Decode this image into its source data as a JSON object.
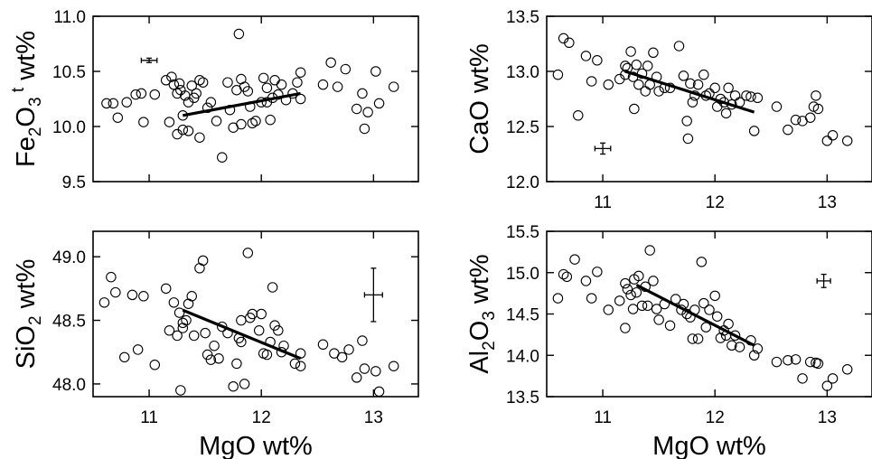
{
  "chart_data": [
    {
      "type": "scatter",
      "xlabel": "",
      "ylabel": {
        "pre": "Fe",
        "sub": "2",
        "mid": "O",
        "sub2": "3",
        "sup": "t",
        "post": " wt%"
      },
      "xlim": [
        10.5,
        13.4
      ],
      "ylim": [
        9.5,
        11.0
      ],
      "xticks": [
        11,
        12,
        13
      ],
      "xtick_labels": [
        "",
        "",
        ""
      ],
      "yticks": [
        9.5,
        10.0,
        10.5,
        11.0
      ],
      "ytick_labels": [
        "9.5",
        "10.0",
        "10.5",
        "11.0"
      ],
      "grid": false,
      "points": [
        [
          10.62,
          10.21
        ],
        [
          10.68,
          10.21
        ],
        [
          10.72,
          10.08
        ],
        [
          10.8,
          10.22
        ],
        [
          10.88,
          10.29
        ],
        [
          10.93,
          10.3
        ],
        [
          10.95,
          10.04
        ],
        [
          11.05,
          10.29
        ],
        [
          11.15,
          10.42
        ],
        [
          11.18,
          10.04
        ],
        [
          11.2,
          10.45
        ],
        [
          11.22,
          10.38
        ],
        [
          11.25,
          10.3
        ],
        [
          11.25,
          9.93
        ],
        [
          11.27,
          10.39
        ],
        [
          11.28,
          10.33
        ],
        [
          11.3,
          10.1
        ],
        [
          11.3,
          9.97
        ],
        [
          11.32,
          10.28
        ],
        [
          11.35,
          10.22
        ],
        [
          11.35,
          9.96
        ],
        [
          11.38,
          10.37
        ],
        [
          11.4,
          10.26
        ],
        [
          11.42,
          10.3
        ],
        [
          11.45,
          10.42
        ],
        [
          11.45,
          9.9
        ],
        [
          11.48,
          10.4
        ],
        [
          11.52,
          10.17
        ],
        [
          11.55,
          10.22
        ],
        [
          11.6,
          10.05
        ],
        [
          11.65,
          9.72
        ],
        [
          11.7,
          10.4
        ],
        [
          11.72,
          10.15
        ],
        [
          11.75,
          9.99
        ],
        [
          11.78,
          10.33
        ],
        [
          11.8,
          10.84
        ],
        [
          11.82,
          10.43
        ],
        [
          11.82,
          10.02
        ],
        [
          11.85,
          10.36
        ],
        [
          11.88,
          10.32
        ],
        [
          11.9,
          10.18
        ],
        [
          11.92,
          10.03
        ],
        [
          11.95,
          10.05
        ],
        [
          12.0,
          10.22
        ],
        [
          12.02,
          10.44
        ],
        [
          12.05,
          10.35
        ],
        [
          12.05,
          10.22
        ],
        [
          12.08,
          10.06
        ],
        [
          12.1,
          10.26
        ],
        [
          12.12,
          10.42
        ],
        [
          12.15,
          10.29
        ],
        [
          12.18,
          10.38
        ],
        [
          12.22,
          10.24
        ],
        [
          12.28,
          10.3
        ],
        [
          12.32,
          10.4
        ],
        [
          12.35,
          10.49
        ],
        [
          12.35,
          10.25
        ],
        [
          12.55,
          10.38
        ],
        [
          12.62,
          10.58
        ],
        [
          12.68,
          10.36
        ],
        [
          12.75,
          10.52
        ],
        [
          12.85,
          10.16
        ],
        [
          12.9,
          10.3
        ],
        [
          12.92,
          9.98
        ],
        [
          12.95,
          10.13
        ],
        [
          13.02,
          10.5
        ],
        [
          13.05,
          10.21
        ],
        [
          13.18,
          10.36
        ]
      ],
      "trendline": [
        [
          11.3,
          10.1
        ],
        [
          12.35,
          10.3
        ]
      ],
      "error_bar": {
        "x": 11.0,
        "y": 10.6,
        "dx": 0.07,
        "dy": 0.02
      }
    },
    {
      "type": "scatter",
      "xlabel": "",
      "ylabel": {
        "pre": "CaO wt%"
      },
      "xlim": [
        10.5,
        13.4
      ],
      "ylim": [
        12.0,
        13.5
      ],
      "xticks": [
        11,
        12,
        13
      ],
      "xtick_labels": [
        "11",
        "12",
        "13"
      ],
      "yticks": [
        12.0,
        12.5,
        13.0,
        13.5
      ],
      "ytick_labels": [
        "12.0",
        "12.5",
        "13.0",
        "13.5"
      ],
      "grid": false,
      "points": [
        [
          10.6,
          12.97
        ],
        [
          10.65,
          13.3
        ],
        [
          10.7,
          13.26
        ],
        [
          10.78,
          12.6
        ],
        [
          10.85,
          13.14
        ],
        [
          10.9,
          12.91
        ],
        [
          10.95,
          13.1
        ],
        [
          11.05,
          12.88
        ],
        [
          11.15,
          12.93
        ],
        [
          11.2,
          13.05
        ],
        [
          11.2,
          12.97
        ],
        [
          11.22,
          13.03
        ],
        [
          11.25,
          13.18
        ],
        [
          11.27,
          12.95
        ],
        [
          11.28,
          12.66
        ],
        [
          11.3,
          13.06
        ],
        [
          11.32,
          12.88
        ],
        [
          11.35,
          12.98
        ],
        [
          11.38,
          12.82
        ],
        [
          11.4,
          13.05
        ],
        [
          11.42,
          12.88
        ],
        [
          11.45,
          13.17
        ],
        [
          11.48,
          12.95
        ],
        [
          11.5,
          12.82
        ],
        [
          11.55,
          12.85
        ],
        [
          11.6,
          12.85
        ],
        [
          11.68,
          13.23
        ],
        [
          11.72,
          12.96
        ],
        [
          11.75,
          12.55
        ],
        [
          11.76,
          12.39
        ],
        [
          11.78,
          12.89
        ],
        [
          11.8,
          12.72
        ],
        [
          11.82,
          12.78
        ],
        [
          11.85,
          12.88
        ],
        [
          11.9,
          12.97
        ],
        [
          11.92,
          12.78
        ],
        [
          11.95,
          12.8
        ],
        [
          12.0,
          12.85
        ],
        [
          12.02,
          12.68
        ],
        [
          12.05,
          12.75
        ],
        [
          12.08,
          12.72
        ],
        [
          12.1,
          12.62
        ],
        [
          12.12,
          12.85
        ],
        [
          12.15,
          12.7
        ],
        [
          12.18,
          12.78
        ],
        [
          12.22,
          12.72
        ],
        [
          12.28,
          12.78
        ],
        [
          12.32,
          12.77
        ],
        [
          12.35,
          12.46
        ],
        [
          12.38,
          12.76
        ],
        [
          12.55,
          12.68
        ],
        [
          12.65,
          12.47
        ],
        [
          12.72,
          12.56
        ],
        [
          12.78,
          12.55
        ],
        [
          12.85,
          12.58
        ],
        [
          12.88,
          12.68
        ],
        [
          12.9,
          12.78
        ],
        [
          12.92,
          12.66
        ],
        [
          13.0,
          12.37
        ],
        [
          13.05,
          12.42
        ],
        [
          13.18,
          12.37
        ]
      ],
      "trendline": [
        [
          11.2,
          13.0
        ],
        [
          12.35,
          12.63
        ]
      ],
      "error_bar": {
        "x": 11.0,
        "y": 12.3,
        "dx": 0.07,
        "dy": 0.05
      }
    },
    {
      "type": "scatter",
      "xlabel": "MgO wt%",
      "ylabel": {
        "pre": "SiO",
        "sub": "2",
        "post": " wt%"
      },
      "xlim": [
        10.5,
        13.4
      ],
      "ylim": [
        47.9,
        49.2
      ],
      "xticks": [
        11,
        12,
        13
      ],
      "xtick_labels": [
        "11",
        "12",
        "13"
      ],
      "yticks": [
        48.0,
        48.5,
        49.0
      ],
      "ytick_labels": [
        "48.0",
        "48.5",
        "49.0"
      ],
      "grid": false,
      "points": [
        [
          10.6,
          48.64
        ],
        [
          10.66,
          48.84
        ],
        [
          10.7,
          48.72
        ],
        [
          10.78,
          48.21
        ],
        [
          10.85,
          48.7
        ],
        [
          10.9,
          48.27
        ],
        [
          10.95,
          48.69
        ],
        [
          11.05,
          48.15
        ],
        [
          11.15,
          48.75
        ],
        [
          11.18,
          48.42
        ],
        [
          11.22,
          48.64
        ],
        [
          11.25,
          48.38
        ],
        [
          11.27,
          48.56
        ],
        [
          11.28,
          47.95
        ],
        [
          11.3,
          48.48
        ],
        [
          11.3,
          48.44
        ],
        [
          11.33,
          48.5
        ],
        [
          11.35,
          48.63
        ],
        [
          11.38,
          48.69
        ],
        [
          11.4,
          48.38
        ],
        [
          11.45,
          48.91
        ],
        [
          11.48,
          48.97
        ],
        [
          11.5,
          48.4
        ],
        [
          11.52,
          48.23
        ],
        [
          11.55,
          48.19
        ],
        [
          11.58,
          48.3
        ],
        [
          11.62,
          48.2
        ],
        [
          11.65,
          48.45
        ],
        [
          11.7,
          48.4
        ],
        [
          11.75,
          47.98
        ],
        [
          11.78,
          48.16
        ],
        [
          11.8,
          48.36
        ],
        [
          11.82,
          48.33
        ],
        [
          11.82,
          48.5
        ],
        [
          11.85,
          48.0
        ],
        [
          11.88,
          49.03
        ],
        [
          11.9,
          48.52
        ],
        [
          11.92,
          48.55
        ],
        [
          11.98,
          48.42
        ],
        [
          12.0,
          48.55
        ],
        [
          12.02,
          48.24
        ],
        [
          12.05,
          48.23
        ],
        [
          12.08,
          48.33
        ],
        [
          12.1,
          48.76
        ],
        [
          12.12,
          48.46
        ],
        [
          12.15,
          48.42
        ],
        [
          12.18,
          48.25
        ],
        [
          12.2,
          48.3
        ],
        [
          12.3,
          48.16
        ],
        [
          12.35,
          48.24
        ],
        [
          12.35,
          48.14
        ],
        [
          12.55,
          48.31
        ],
        [
          12.65,
          48.24
        ],
        [
          12.72,
          48.21
        ],
        [
          12.78,
          48.27
        ],
        [
          12.85,
          48.05
        ],
        [
          12.9,
          48.34
        ],
        [
          12.92,
          48.12
        ],
        [
          13.02,
          48.1
        ],
        [
          13.05,
          47.94
        ],
        [
          13.18,
          48.14
        ]
      ],
      "trendline": [
        [
          11.3,
          48.58
        ],
        [
          12.35,
          48.2
        ]
      ],
      "error_bar": {
        "x": 13.0,
        "y": 48.7,
        "dx": 0.08,
        "dy": 0.21
      }
    },
    {
      "type": "scatter",
      "xlabel": "MgO wt%",
      "ylabel": {
        "pre": "Al",
        "sub": "2",
        "mid": "O",
        "sub2": "3",
        "post": " wt%"
      },
      "xlim": [
        10.5,
        13.4
      ],
      "ylim": [
        13.5,
        15.5
      ],
      "xticks": [
        11,
        12,
        13
      ],
      "xtick_labels": [
        "11",
        "12",
        "13"
      ],
      "yticks": [
        13.5,
        14.0,
        14.5,
        15.0,
        15.5
      ],
      "ytick_labels": [
        "13.5",
        "14.0",
        "14.5",
        "15.0",
        "15.5"
      ],
      "grid": false,
      "points": [
        [
          10.6,
          14.69
        ],
        [
          10.65,
          14.98
        ],
        [
          10.68,
          14.95
        ],
        [
          10.75,
          15.16
        ],
        [
          10.85,
          14.9
        ],
        [
          10.9,
          14.69
        ],
        [
          10.95,
          15.01
        ],
        [
          11.05,
          14.55
        ],
        [
          11.15,
          14.66
        ],
        [
          11.2,
          14.87
        ],
        [
          11.2,
          14.33
        ],
        [
          11.22,
          14.8
        ],
        [
          11.25,
          14.73
        ],
        [
          11.27,
          14.56
        ],
        [
          11.28,
          14.92
        ],
        [
          11.3,
          14.76
        ],
        [
          11.32,
          14.96
        ],
        [
          11.35,
          14.6
        ],
        [
          11.38,
          14.83
        ],
        [
          11.4,
          14.6
        ],
        [
          11.42,
          15.27
        ],
        [
          11.45,
          14.9
        ],
        [
          11.48,
          14.56
        ],
        [
          11.5,
          14.43
        ],
        [
          11.55,
          14.62
        ],
        [
          11.6,
          14.36
        ],
        [
          11.65,
          14.68
        ],
        [
          11.7,
          14.55
        ],
        [
          11.72,
          14.62
        ],
        [
          11.75,
          14.5
        ],
        [
          11.78,
          14.46
        ],
        [
          11.8,
          14.2
        ],
        [
          11.82,
          14.55
        ],
        [
          11.85,
          14.2
        ],
        [
          11.88,
          15.13
        ],
        [
          11.9,
          14.63
        ],
        [
          11.92,
          14.34
        ],
        [
          11.95,
          14.55
        ],
        [
          12.0,
          14.72
        ],
        [
          12.02,
          14.47
        ],
        [
          12.05,
          14.21
        ],
        [
          12.08,
          14.3
        ],
        [
          12.1,
          14.24
        ],
        [
          12.12,
          14.38
        ],
        [
          12.15,
          14.12
        ],
        [
          12.18,
          14.24
        ],
        [
          12.22,
          14.1
        ],
        [
          12.32,
          14.18
        ],
        [
          12.35,
          14.0
        ],
        [
          12.38,
          14.08
        ],
        [
          12.55,
          13.92
        ],
        [
          12.65,
          13.94
        ],
        [
          12.72,
          13.95
        ],
        [
          12.78,
          13.72
        ],
        [
          12.85,
          13.92
        ],
        [
          12.9,
          13.91
        ],
        [
          12.92,
          13.9
        ],
        [
          13.0,
          13.63
        ],
        [
          13.05,
          13.72
        ],
        [
          13.18,
          13.83
        ]
      ],
      "trendline": [
        [
          11.3,
          14.85
        ],
        [
          12.35,
          14.12
        ]
      ],
      "error_bar": {
        "x": 12.97,
        "y": 14.9,
        "dx": 0.06,
        "dy": 0.08
      }
    }
  ]
}
